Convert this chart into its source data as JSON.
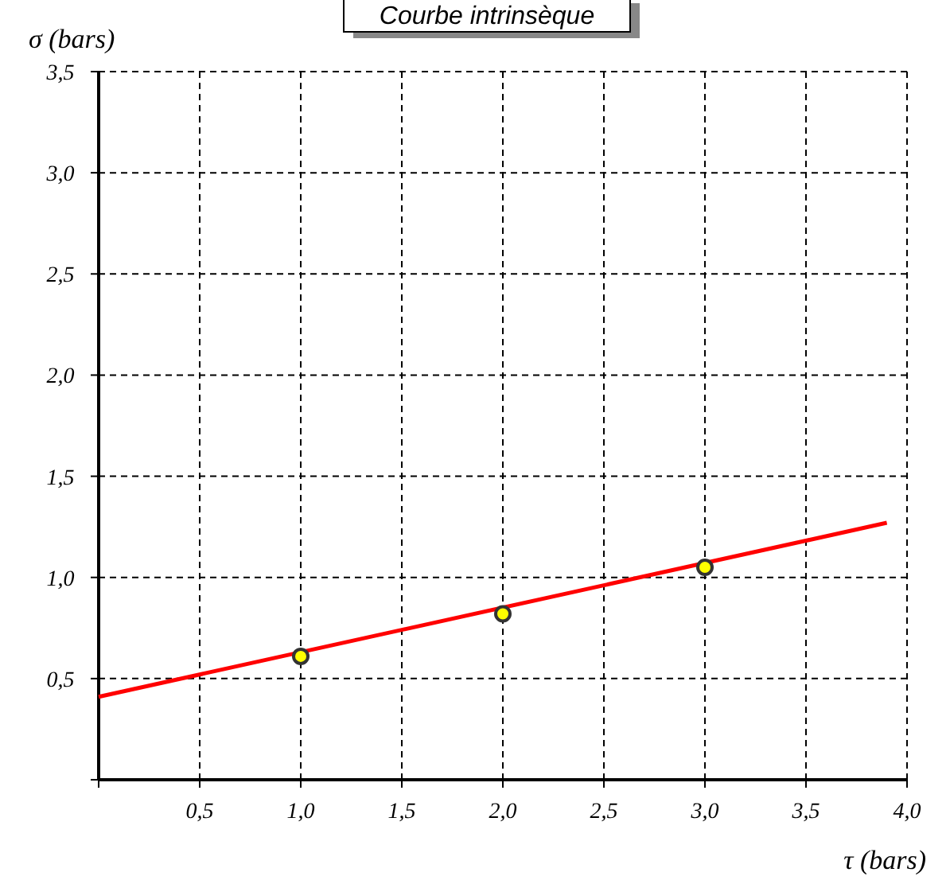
{
  "chart_data": {
    "type": "scatter",
    "title": "Courbe intrinsèque",
    "xlabel": "τ (bars)",
    "ylabel": "σ (bars)",
    "xlim": [
      0,
      4.0
    ],
    "ylim": [
      0,
      3.5
    ],
    "xticks": [
      {
        "value": 0,
        "label": null
      },
      {
        "value": 0.5,
        "label": "0,5"
      },
      {
        "value": 1,
        "label": "1,0"
      },
      {
        "value": 1.5,
        "label": "1,5"
      },
      {
        "value": 2,
        "label": "2,0"
      },
      {
        "value": 2.5,
        "label": "2,5"
      },
      {
        "value": 3,
        "label": "3,0"
      },
      {
        "value": 3.5,
        "label": "3,5"
      },
      {
        "value": 4,
        "label": "4,0"
      }
    ],
    "yticks": [
      {
        "value": 0,
        "label": null
      },
      {
        "value": 0.5,
        "label": "0,5"
      },
      {
        "value": 1,
        "label": "1,0"
      },
      {
        "value": 1.5,
        "label": "1,5"
      },
      {
        "value": 2,
        "label": "2,0"
      },
      {
        "value": 2.5,
        "label": "2,5"
      },
      {
        "value": 3,
        "label": "3,0"
      },
      {
        "value": 3.5,
        "label": "3,5"
      }
    ],
    "grid": true,
    "series": [
      {
        "type": "line",
        "color": "#ff0000",
        "x": [
          0,
          3.9
        ],
        "values": [
          0.41,
          1.27
        ],
        "marker": "none",
        "line_style": "solid"
      },
      {
        "color": "#ffff00",
        "x": [
          1,
          2,
          3
        ],
        "values": [
          0.61,
          0.82,
          1.05
        ],
        "marker": "circle"
      }
    ]
  }
}
